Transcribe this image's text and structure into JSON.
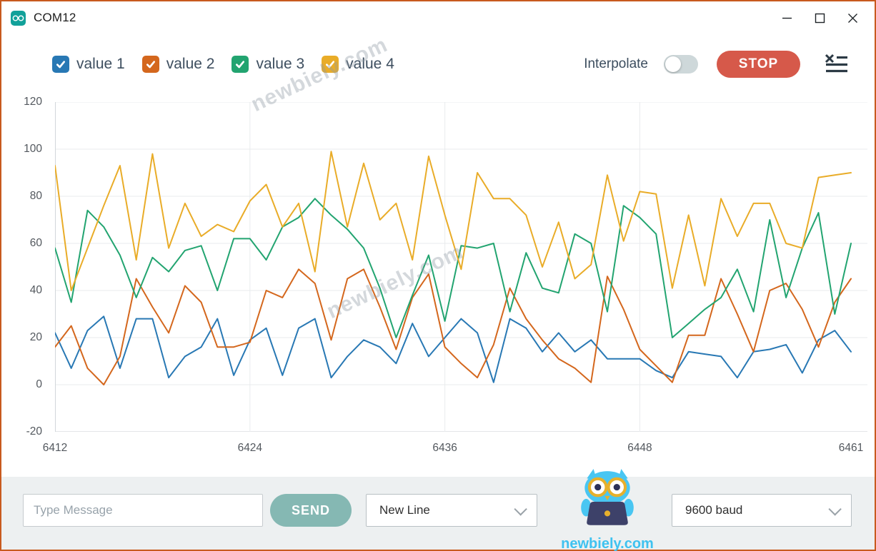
{
  "window": {
    "title": "COM12"
  },
  "theme": {
    "window_border": "#c85a1e",
    "icon_bg": "#12a19a",
    "stop_bg": "#d6594a",
    "send_bg": "#85b8b3",
    "toggle_bg": "#ced8da",
    "logo_blue": "#3fc2f0"
  },
  "toolbar": {
    "interpolate_label": "Interpolate",
    "interpolate_on": false,
    "stop_label": "STOP"
  },
  "chart_data": {
    "type": "line",
    "x_start": 6412,
    "x_end": 6461,
    "x_ticks": [
      6412,
      6424,
      6436,
      6448,
      6461
    ],
    "y_ticks": [
      120,
      100,
      80,
      60,
      40,
      20,
      0,
      -20
    ],
    "ylim": [
      -20,
      120
    ],
    "grid": true,
    "legend_position": "top-left",
    "watermark": "newbiely.com",
    "series": [
      {
        "name": "value 1",
        "color": "#2878b4",
        "values": [
          22,
          7,
          23,
          29,
          7,
          28,
          28,
          3,
          12,
          16,
          28,
          4,
          19,
          24,
          4,
          24,
          28,
          3,
          12,
          19,
          16,
          9,
          26,
          12,
          20,
          28,
          22,
          1,
          28,
          24,
          14,
          22,
          14,
          19,
          11,
          11,
          11,
          6,
          3,
          14,
          13,
          12,
          3,
          14,
          15,
          17,
          5,
          19,
          23,
          14
        ]
      },
      {
        "name": "value 2",
        "color": "#d4671d",
        "values": [
          16,
          25,
          7,
          0,
          12,
          45,
          33,
          22,
          42,
          35,
          16,
          16,
          18,
          40,
          37,
          49,
          43,
          19,
          45,
          49,
          33,
          15,
          37,
          47,
          16,
          9,
          3,
          17,
          41,
          28,
          19,
          11,
          7,
          1,
          46,
          32,
          15,
          8,
          1,
          21,
          21,
          45,
          30,
          14,
          40,
          43,
          32,
          16,
          35,
          45
        ]
      },
      {
        "name": "value 3",
        "color": "#22a470",
        "values": [
          58,
          35,
          74,
          67,
          55,
          37,
          54,
          48,
          57,
          59,
          40,
          62,
          62,
          53,
          67,
          71,
          79,
          72,
          66,
          58,
          41,
          20,
          38,
          55,
          27,
          59,
          58,
          60,
          31,
          56,
          41,
          39,
          64,
          60,
          31,
          76,
          71,
          64,
          20,
          26,
          32,
          37,
          49,
          31,
          70,
          37,
          58,
          73,
          30,
          60
        ]
      },
      {
        "name": "value 4",
        "color": "#e9ac28",
        "values": [
          93,
          40,
          58,
          76,
          93,
          53,
          98,
          58,
          77,
          63,
          68,
          65,
          78,
          85,
          67,
          77,
          48,
          99,
          67,
          94,
          70,
          77,
          53,
          97,
          72,
          49,
          90,
          79,
          79,
          72,
          50,
          69,
          45,
          51,
          89,
          61,
          82,
          81,
          41,
          72,
          42,
          79,
          63,
          77,
          77,
          60,
          58,
          88,
          89,
          90
        ]
      }
    ]
  },
  "bottom_bar": {
    "message_placeholder": "Type Message",
    "send_label": "SEND",
    "line_ending": "New Line",
    "baud_rate": "9600 baud",
    "logo_text": "newbiely.com"
  }
}
